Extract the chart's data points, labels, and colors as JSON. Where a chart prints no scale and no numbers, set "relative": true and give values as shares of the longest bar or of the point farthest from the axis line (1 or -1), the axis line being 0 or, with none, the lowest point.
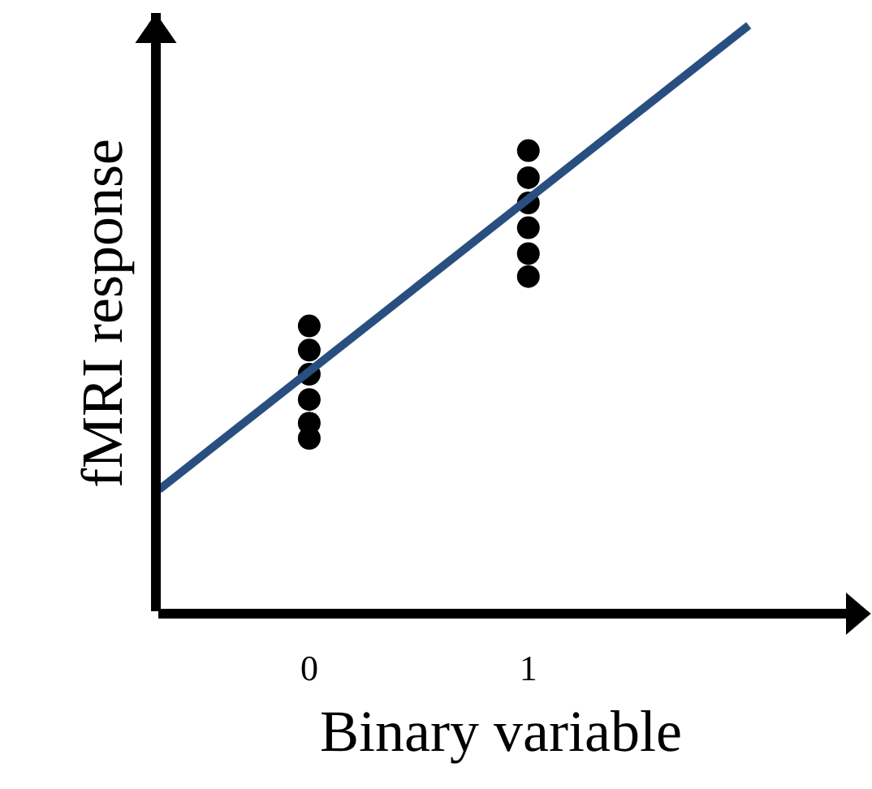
{
  "chart_data": {
    "type": "scatter",
    "relative": true,
    "xlabel": "Binary variable",
    "ylabel": "fMRI response",
    "xlim": [
      -0.7,
      2.45
    ],
    "xticks": [
      0,
      1
    ],
    "series": [
      {
        "type": "scatter",
        "marker": "circle",
        "color": "#000000",
        "x": [
          0,
          0,
          0,
          0,
          0,
          0,
          1,
          1,
          1,
          1,
          1,
          1
        ],
        "values": [
          0.489,
          0.448,
          0.407,
          0.364,
          0.324,
          0.298,
          0.787,
          0.741,
          0.698,
          0.656,
          0.612,
          0.573
        ]
      },
      {
        "type": "line",
        "color": "#284f80",
        "line_style": "solid",
        "x": [
          -0.685,
          2.006
        ],
        "values": [
          0.211,
          1.0
        ]
      }
    ]
  }
}
